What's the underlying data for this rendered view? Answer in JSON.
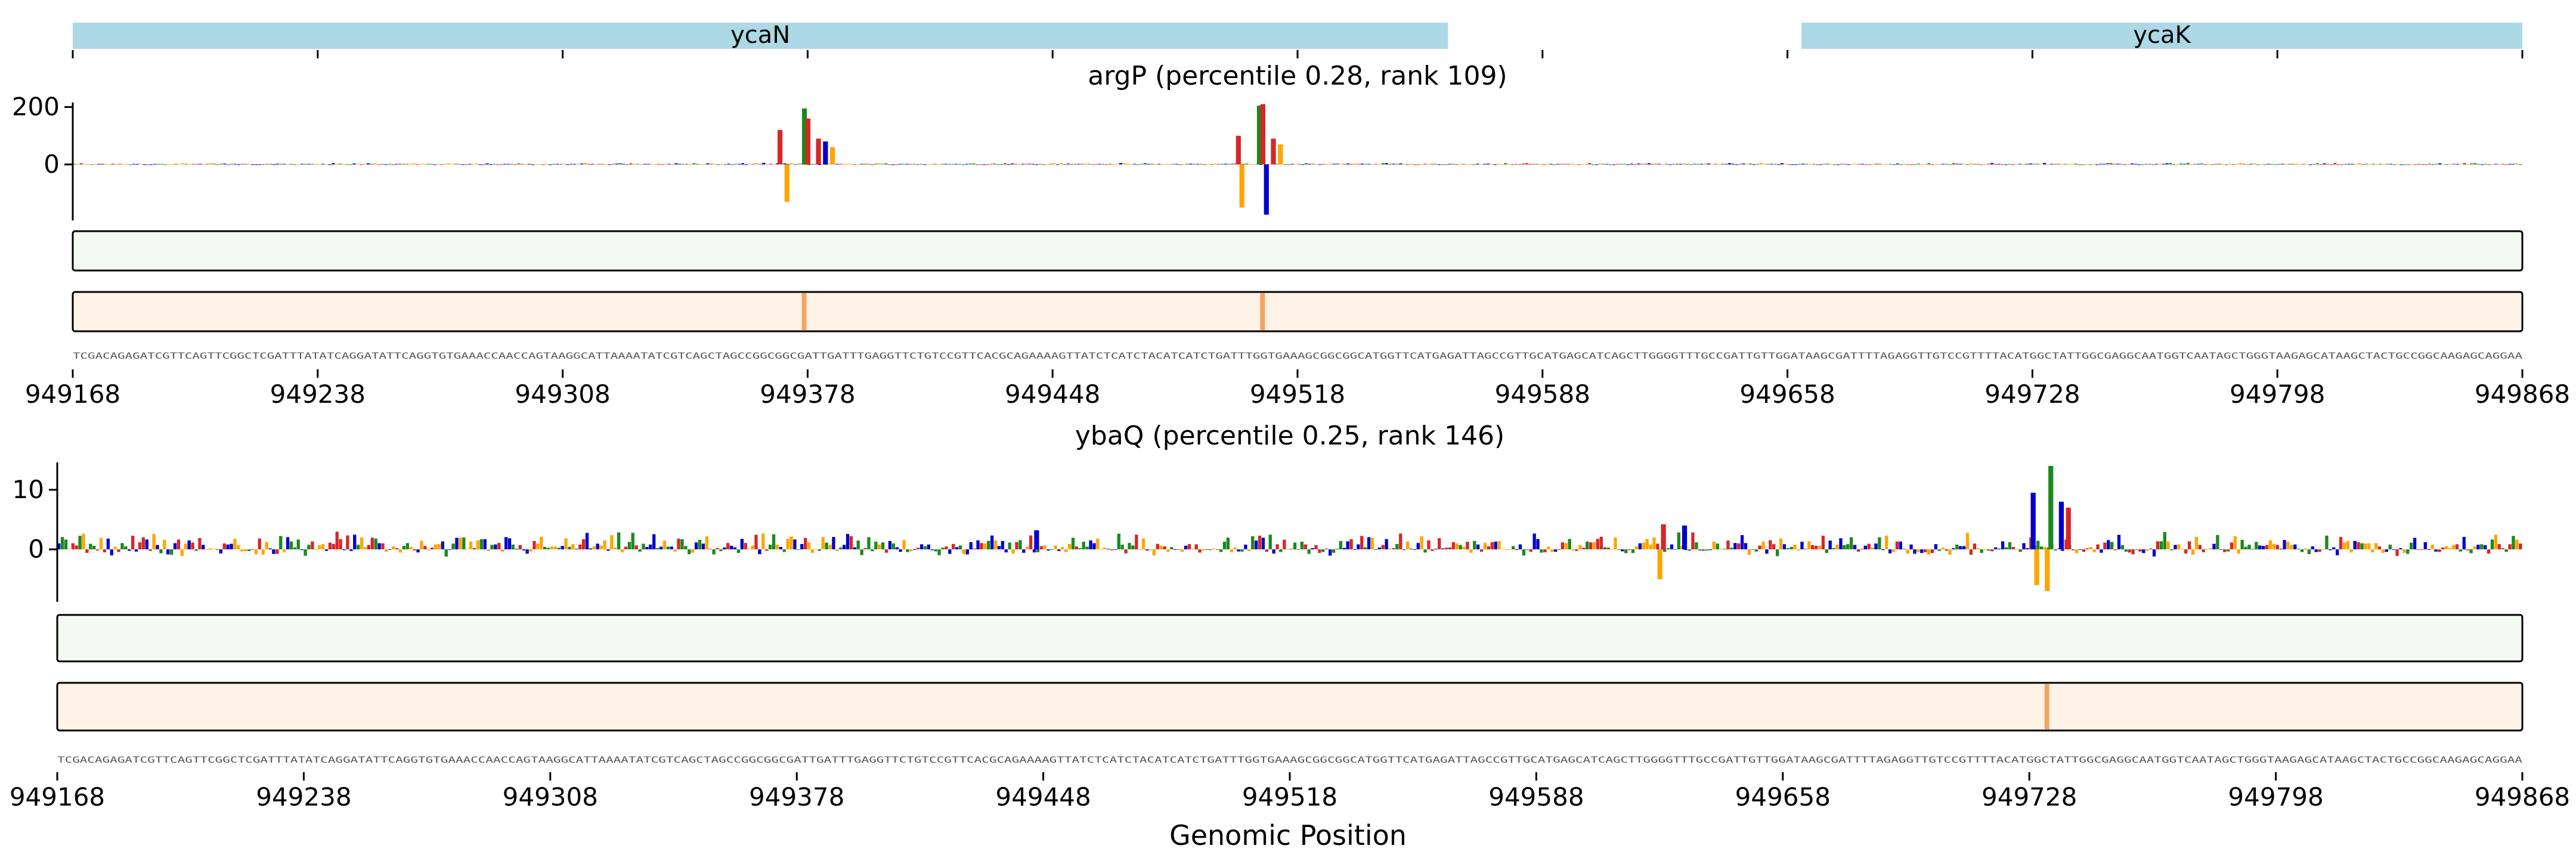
{
  "figure": {
    "xlabel": "Genomic Position"
  },
  "colors": {
    "A": "#d62728",
    "C": "#0000cc",
    "G": "#1a8a1a",
    "T": "#ffa500",
    "gene": "#add8e6",
    "green_track": "#f3faf1",
    "orange_track": "#fff3e8",
    "orange_stripe": "#f4a460"
  },
  "genes": [
    {
      "name": "ycaN",
      "start": 949168,
      "end": 949561
    },
    {
      "name": "ycaK",
      "start": 949662,
      "end": 949868
    }
  ],
  "chart_data": [
    {
      "type": "sequence-logo",
      "title": "argP (percentile 0.28, rank 109)",
      "x_range": [
        949168,
        949868
      ],
      "x_ticks": [
        "949168",
        "949238",
        "949308",
        "949378",
        "949448",
        "949518",
        "949588",
        "949658",
        "949728",
        "949798",
        "949868"
      ],
      "y_ticks": [
        {
          "value": 200,
          "label": "200"
        },
        {
          "value": 0,
          "label": "0"
        }
      ],
      "ylim": [
        -180,
        220
      ],
      "background_amplitude": 3,
      "peaks": [
        {
          "position": 949370,
          "base": "A",
          "value": 120
        },
        {
          "position": 949372,
          "base": "T",
          "value": -130
        },
        {
          "position": 949377,
          "base": "G",
          "value": 195
        },
        {
          "position": 949378,
          "base": "A",
          "value": 160
        },
        {
          "position": 949381,
          "base": "A",
          "value": 90
        },
        {
          "position": 949383,
          "base": "C",
          "value": 80
        },
        {
          "position": 949385,
          "base": "T",
          "value": 60
        },
        {
          "position": 949501,
          "base": "A",
          "value": 100
        },
        {
          "position": 949502,
          "base": "T",
          "value": -150
        },
        {
          "position": 949507,
          "base": "G",
          "value": 205
        },
        {
          "position": 949508,
          "base": "A",
          "value": 210
        },
        {
          "position": 949509,
          "base": "C",
          "value": -175
        },
        {
          "position": 949511,
          "base": "A",
          "value": 90
        },
        {
          "position": 949513,
          "base": "T",
          "value": 70
        }
      ],
      "orange_stripes": [
        949377,
        949508
      ]
    },
    {
      "type": "sequence-logo",
      "title": "ybaQ (percentile 0.25, rank 146)",
      "x_range": [
        949168,
        949868
      ],
      "x_ticks": [
        "949168",
        "949238",
        "949308",
        "949378",
        "949448",
        "949518",
        "949588",
        "949658",
        "949728",
        "949798",
        "949868"
      ],
      "y_ticks": [
        {
          "value": 10,
          "label": "10"
        },
        {
          "value": 0,
          "label": "0"
        }
      ],
      "ylim": [
        -9,
        15
      ],
      "background_amplitude": 1.6,
      "peaks": [
        {
          "position": 949729,
          "base": "C",
          "value": 9.5
        },
        {
          "position": 949730,
          "base": "T",
          "value": -6
        },
        {
          "position": 949733,
          "base": "T",
          "value": -7
        },
        {
          "position": 949734,
          "base": "G",
          "value": 14
        },
        {
          "position": 949737,
          "base": "C",
          "value": 8
        },
        {
          "position": 949739,
          "base": "A",
          "value": 7
        },
        {
          "position": 949623,
          "base": "T",
          "value": -5
        },
        {
          "position": 949624,
          "base": "A",
          "value": 4.2
        },
        {
          "position": 949630,
          "base": "C",
          "value": 4.0
        },
        {
          "position": 949446,
          "base": "C",
          "value": 3.2
        }
      ],
      "orange_stripes": [
        949733
      ]
    }
  ],
  "sequence": "TCGACAGAGATCGTTCAGTTCGGCTCGATTTATATCAGGATATTCAGGTGTGAAACCAACCAGTAAGGCATTAAAATATCGTCAGCTAGCCGGCGGCGATTGATTTGAGGTTCTGTCCGTTCACGCAGAAAAGTTATCTCATCTACATCATCTGATTTGGTGAAAGCGGCGGCATGGTTCATGAGATTAGCCGTTGCATGAGCATCAGCTTGGGGTTTGCCGATTGTTGGATAAGCGATTTTAGAGGTTGTCCGTTTTACATGGCTATTGGCGAGGCAATGGTCAATAGCTGGGTAAGAGCATAAGCTACTGCCGGCAAGAGCAGGAA"
}
